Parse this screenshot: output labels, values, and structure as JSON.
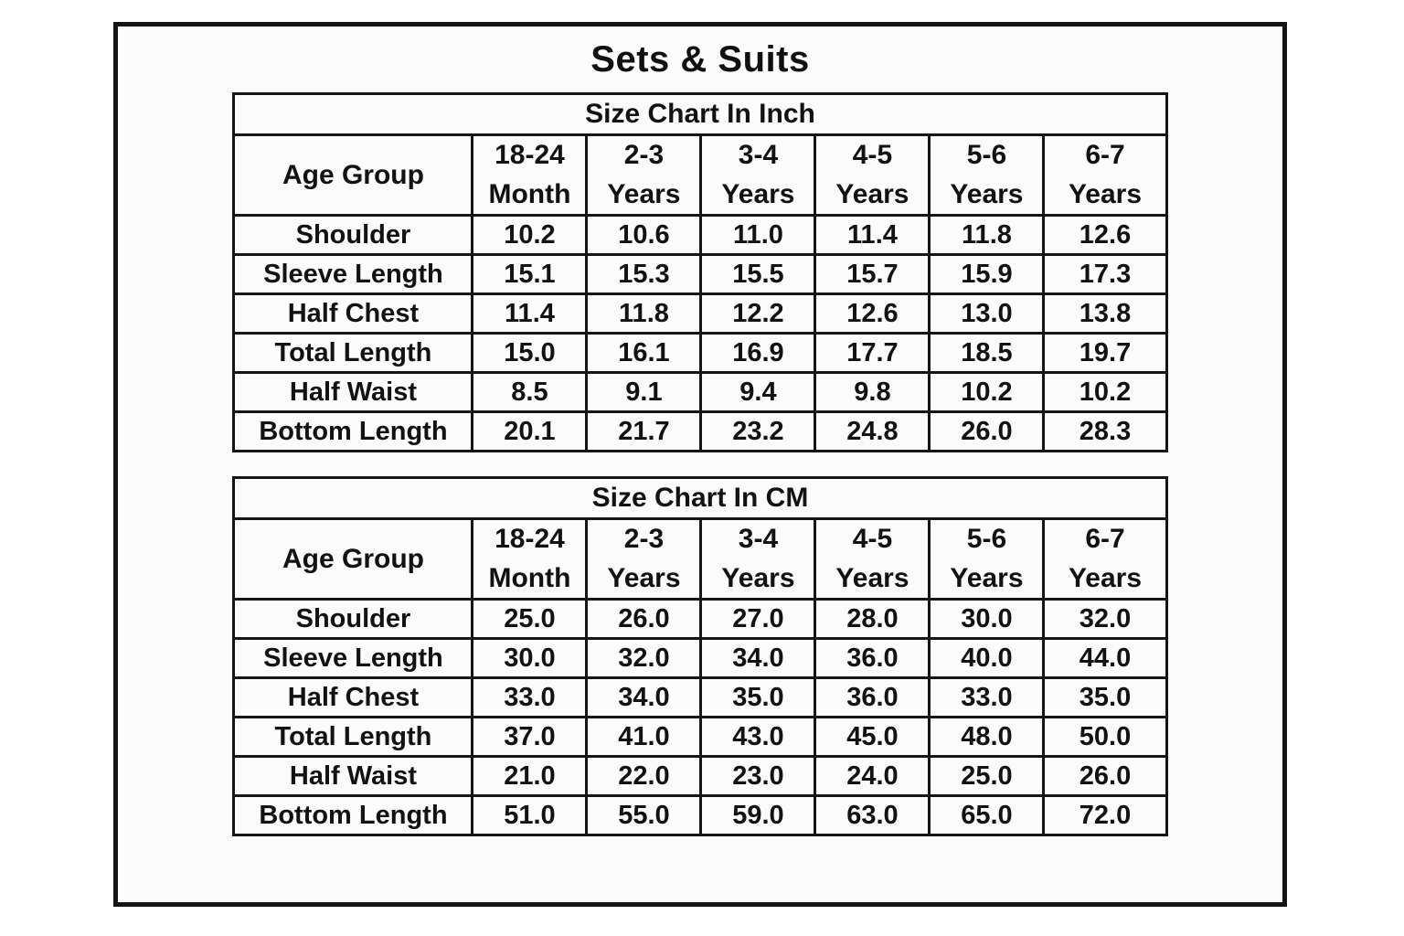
{
  "title": "Sets & Suits",
  "colors": {
    "border": "#151515",
    "text": "#121212",
    "frame_background": "#fcfcfc",
    "cell_background": "#fbfbfb",
    "page_background": "#ffffff"
  },
  "tables": [
    {
      "caption": "Size Chart In Inch",
      "age_group_label": "Age Group",
      "columns": [
        "18-24\nMonth",
        "2-3\nYears",
        "3-4\nYears",
        "4-5\nYears",
        "5-6\nYears",
        "6-7\nYears"
      ],
      "rows": [
        {
          "label": "Shoulder",
          "values": [
            "10.2",
            "10.6",
            "11.0",
            "11.4",
            "11.8",
            "12.6"
          ]
        },
        {
          "label": "Sleeve Length",
          "values": [
            "15.1",
            "15.3",
            "15.5",
            "15.7",
            "15.9",
            "17.3"
          ]
        },
        {
          "label": "Half Chest",
          "values": [
            "11.4",
            "11.8",
            "12.2",
            "12.6",
            "13.0",
            "13.8"
          ]
        },
        {
          "label": "Total Length",
          "values": [
            "15.0",
            "16.1",
            "16.9",
            "17.7",
            "18.5",
            "19.7"
          ]
        },
        {
          "label": "Half Waist",
          "values": [
            "8.5",
            "9.1",
            "9.4",
            "9.8",
            "10.2",
            "10.2"
          ]
        },
        {
          "label": "Bottom Length",
          "values": [
            "20.1",
            "21.7",
            "23.2",
            "24.8",
            "26.0",
            "28.3"
          ]
        }
      ]
    },
    {
      "caption": "Size Chart In CM",
      "age_group_label": "Age Group",
      "columns": [
        "18-24\nMonth",
        "2-3\nYears",
        "3-4\nYears",
        "4-5\nYears",
        "5-6\nYears",
        "6-7\nYears"
      ],
      "rows": [
        {
          "label": "Shoulder",
          "values": [
            "25.0",
            "26.0",
            "27.0",
            "28.0",
            "30.0",
            "32.0"
          ]
        },
        {
          "label": "Sleeve Length",
          "values": [
            "30.0",
            "32.0",
            "34.0",
            "36.0",
            "40.0",
            "44.0"
          ]
        },
        {
          "label": "Half Chest",
          "values": [
            "33.0",
            "34.0",
            "35.0",
            "36.0",
            "33.0",
            "35.0"
          ]
        },
        {
          "label": "Total Length",
          "values": [
            "37.0",
            "41.0",
            "43.0",
            "45.0",
            "48.0",
            "50.0"
          ]
        },
        {
          "label": "Half Waist",
          "values": [
            "21.0",
            "22.0",
            "23.0",
            "24.0",
            "25.0",
            "26.0"
          ]
        },
        {
          "label": "Bottom Length",
          "values": [
            "51.0",
            "55.0",
            "59.0",
            "63.0",
            "65.0",
            "72.0"
          ]
        }
      ]
    }
  ],
  "chart_data": [
    {
      "type": "table",
      "title": "Size Chart In Inch",
      "columns": [
        "Age Group",
        "18-24 Month",
        "2-3 Years",
        "3-4 Years",
        "4-5 Years",
        "5-6 Years",
        "6-7 Years"
      ],
      "rows": [
        [
          "Shoulder",
          10.2,
          10.6,
          11.0,
          11.4,
          11.8,
          12.6
        ],
        [
          "Sleeve Length",
          15.1,
          15.3,
          15.5,
          15.7,
          15.9,
          17.3
        ],
        [
          "Half Chest",
          11.4,
          11.8,
          12.2,
          12.6,
          13.0,
          13.8
        ],
        [
          "Total Length",
          15.0,
          16.1,
          16.9,
          17.7,
          18.5,
          19.7
        ],
        [
          "Half Waist",
          8.5,
          9.1,
          9.4,
          9.8,
          10.2,
          10.2
        ],
        [
          "Bottom Length",
          20.1,
          21.7,
          23.2,
          24.8,
          26.0,
          28.3
        ]
      ]
    },
    {
      "type": "table",
      "title": "Size Chart In CM",
      "columns": [
        "Age Group",
        "18-24 Month",
        "2-3 Years",
        "3-4 Years",
        "4-5 Years",
        "5-6 Years",
        "6-7 Years"
      ],
      "rows": [
        [
          "Shoulder",
          25.0,
          26.0,
          27.0,
          28.0,
          30.0,
          32.0
        ],
        [
          "Sleeve Length",
          30.0,
          32.0,
          34.0,
          36.0,
          40.0,
          44.0
        ],
        [
          "Half Chest",
          33.0,
          34.0,
          35.0,
          36.0,
          33.0,
          35.0
        ],
        [
          "Total Length",
          37.0,
          41.0,
          43.0,
          45.0,
          48.0,
          50.0
        ],
        [
          "Half Waist",
          21.0,
          22.0,
          23.0,
          24.0,
          25.0,
          26.0
        ],
        [
          "Bottom Length",
          51.0,
          55.0,
          59.0,
          63.0,
          65.0,
          72.0
        ]
      ]
    }
  ]
}
